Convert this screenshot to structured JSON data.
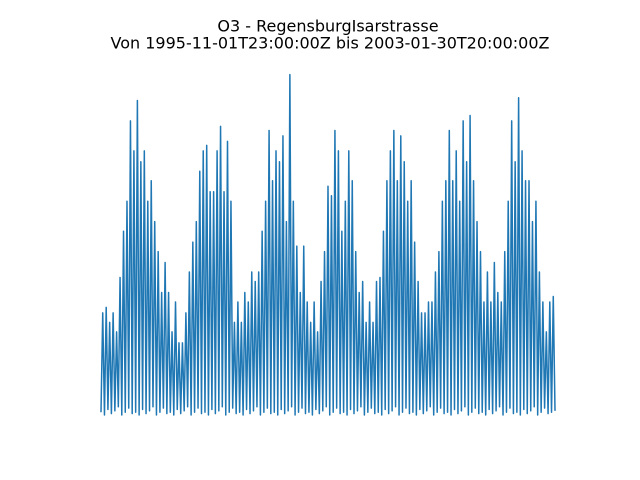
{
  "chart_data": {
    "type": "line",
    "title": "O3 - RegensburgIsarstrasse",
    "subtitle": "Von 1995-11-01T23:00:00Z bis 2003-01-30T20:00:00Z",
    "color": "#1f77b4",
    "ylim": [
      -12.5,
      262.5
    ],
    "values": [
      2,
      75,
      0,
      79,
      4,
      68,
      1,
      75,
      3,
      61,
      6,
      101,
      0,
      135,
      2,
      157,
      5,
      216,
      1,
      194,
      2,
      231,
      0,
      186,
      4,
      194,
      1,
      157,
      3,
      172,
      6,
      142,
      0,
      120,
      2,
      90,
      5,
      112,
      1,
      90,
      2,
      61,
      0,
      83,
      4,
      53,
      1,
      53,
      3,
      75,
      6,
      105,
      0,
      127,
      2,
      142,
      5,
      179,
      1,
      194,
      2,
      198,
      0,
      164,
      4,
      164,
      1,
      194,
      3,
      212,
      6,
      164,
      0,
      201,
      2,
      157,
      5,
      68,
      1,
      83,
      2,
      68,
      0,
      90,
      4,
      83,
      1,
      105,
      3,
      98,
      6,
      105,
      0,
      135,
      2,
      157,
      5,
      209,
      1,
      172,
      2,
      194,
      0,
      186,
      4,
      205,
      1,
      142,
      3,
      250,
      6,
      157,
      0,
      124,
      2,
      90,
      5,
      124,
      1,
      83,
      2,
      68,
      0,
      83,
      4,
      61,
      1,
      98,
      3,
      120,
      6,
      168,
      0,
      161,
      2,
      209,
      5,
      194,
      1,
      135,
      2,
      157,
      0,
      194,
      4,
      172,
      1,
      120,
      3,
      90,
      6,
      98,
      0,
      68,
      2,
      83,
      5,
      68,
      1,
      98,
      2,
      101,
      0,
      135,
      4,
      172,
      1,
      194,
      3,
      209,
      6,
      172,
      0,
      205,
      2,
      186,
      5,
      157,
      1,
      172,
      2,
      127,
      0,
      98,
      4,
      75,
      1,
      75,
      3,
      83,
      6,
      83,
      0,
      105,
      2,
      120,
      5,
      157,
      1,
      172,
      2,
      209,
      0,
      172,
      4,
      194,
      1,
      157,
      3,
      216,
      6,
      186,
      0,
      220,
      2,
      172,
      5,
      142,
      1,
      120,
      2,
      83,
      0,
      105,
      4,
      83,
      1,
      112,
      3,
      90,
      6,
      83,
      0,
      120,
      2,
      157,
      5,
      216,
      1,
      186,
      2,
      233,
      0,
      194,
      4,
      172,
      1,
      172,
      3,
      142,
      6,
      157,
      0,
      105,
      2,
      83,
      5,
      61,
      1,
      83,
      2,
      87,
      3
    ]
  }
}
